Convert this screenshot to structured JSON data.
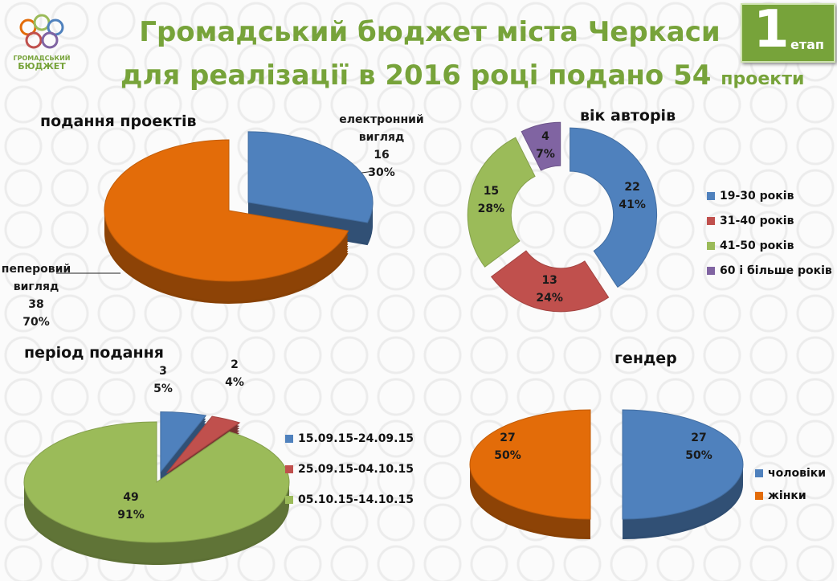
{
  "header": {
    "title_line1": "Громадський бюджет міста Черкаси",
    "title_line2": "для реалізації в 2016 році подано 54",
    "title_suffix": "проекти",
    "stage_number": "1",
    "stage_label": "етап",
    "logo_line1": "ГРОМАДСЬКИЙ",
    "logo_line2": "БЮДЖЕТ"
  },
  "chart_data": [
    {
      "type": "pie",
      "title": "подання проектів",
      "categories": [
        "електронний вигляд",
        "пеперовий вигляд"
      ],
      "values": [
        16,
        38
      ],
      "percent_labels": [
        "30%",
        "70%"
      ],
      "colors": [
        "#4f81bd",
        "#e36c09"
      ],
      "legend": false
    },
    {
      "type": "doughnut",
      "title": "вік авторів",
      "categories": [
        "19-30 років",
        "31-40 років",
        "41-50 років",
        "60 і більше років"
      ],
      "values": [
        22,
        13,
        15,
        4
      ],
      "percent_labels": [
        "41%",
        "24%",
        "28%",
        "7%"
      ],
      "colors": [
        "#4f81bd",
        "#c0504d",
        "#9bbb59",
        "#8064a2"
      ],
      "legend": "right"
    },
    {
      "type": "pie",
      "title": "період подання",
      "categories": [
        "15.09.15-24.09.15",
        "25.09.15-04.10.15",
        "05.10.15-14.10.15"
      ],
      "values": [
        3,
        2,
        49
      ],
      "percent_labels": [
        "5%",
        "4%",
        "91%"
      ],
      "colors": [
        "#4f81bd",
        "#c0504d",
        "#9bbb59"
      ],
      "legend": "right"
    },
    {
      "type": "pie",
      "title": "гендер",
      "categories": [
        "чоловіки",
        "жінки"
      ],
      "values": [
        27,
        27
      ],
      "percent_labels": [
        "50%",
        "50%"
      ],
      "colors": [
        "#4f81bd",
        "#e36c09"
      ],
      "legend": "right"
    }
  ]
}
